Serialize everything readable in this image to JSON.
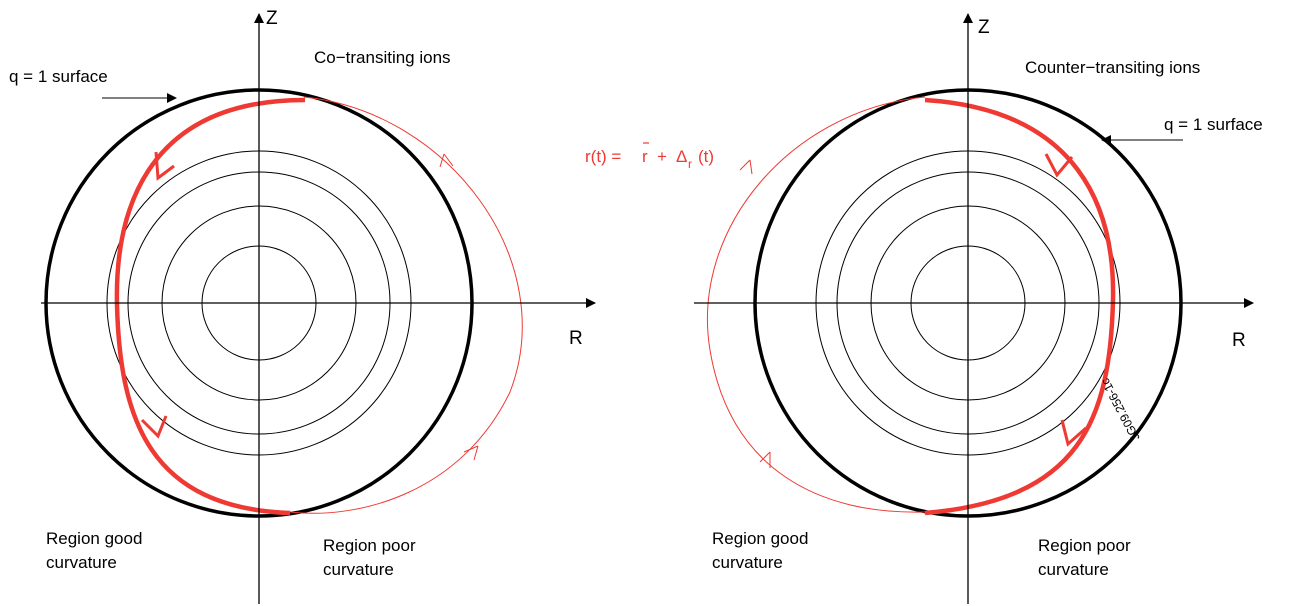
{
  "colors": {
    "trajectory": "#ee3a33",
    "line": "#000000"
  },
  "left_panel": {
    "axis_z": "Z",
    "axis_r": "R",
    "title": "Co−transiting ions",
    "q_surface": "q = 1 surface",
    "region_good": [
      "Region good",
      "curvature"
    ],
    "region_poor": [
      "Region poor",
      "curvature"
    ]
  },
  "right_panel": {
    "axis_z": "Z",
    "axis_r": "R",
    "title": "Counter−transiting ions",
    "q_surface": "q = 1 surface",
    "region_good": [
      "Region good",
      "curvature"
    ],
    "region_poor": [
      "Region poor",
      "curvature"
    ],
    "figure_id": "JG09.256-1c"
  },
  "equation": {
    "lhs": "r(t) =",
    "rbar": "r",
    "plus": "+",
    "delta": "Δ",
    "subscript": "r",
    "arg": "(t)"
  }
}
